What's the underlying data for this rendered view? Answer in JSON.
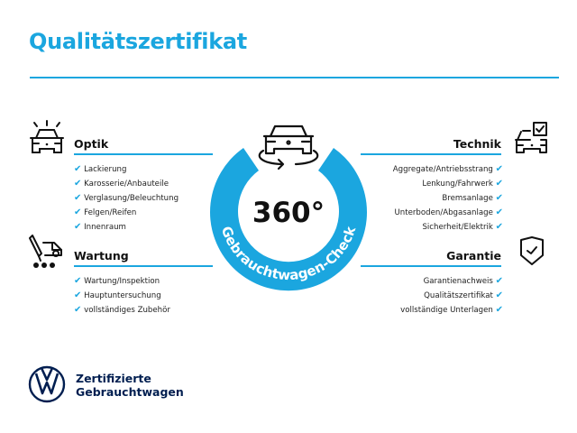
{
  "header": {
    "title": "Qualitätszertifikat"
  },
  "badge": {
    "value": "360°",
    "ring_text": "Gebrauchtwagen-Check"
  },
  "colors": {
    "accent": "#1ba6df",
    "brand_navy": "#001e50"
  },
  "sections": {
    "optik": {
      "title": "Optik",
      "icon": "car-lights-icon",
      "items": [
        "Lackierung",
        "Karosserie/Anbauteile",
        "Verglasung/Beleuchtung",
        "Felgen/Reifen",
        "Innenraum"
      ]
    },
    "wartung": {
      "title": "Wartung",
      "icon": "service-truck-icon",
      "items": [
        "Wartung/Inspektion",
        "Hauptuntersuchung",
        "vollständiges Zubehör"
      ]
    },
    "technik": {
      "title": "Technik",
      "icon": "car-checkbox-icon",
      "items": [
        "Aggregate/Antriebsstrang",
        "Lenkung/Fahrwerk",
        "Bremsanlage",
        "Unterboden/Abgasanlage",
        "Sicherheit/Elektrik"
      ]
    },
    "garantie": {
      "title": "Garantie",
      "icon": "shield-check-icon",
      "items": [
        "Garantienachweis",
        "Qualitätszertifikat",
        "vollständige Unterlagen"
      ]
    }
  },
  "footer": {
    "line1": "Zertifizierte",
    "line2": "Gebrauchtwagen",
    "logo": "vw-logo"
  }
}
